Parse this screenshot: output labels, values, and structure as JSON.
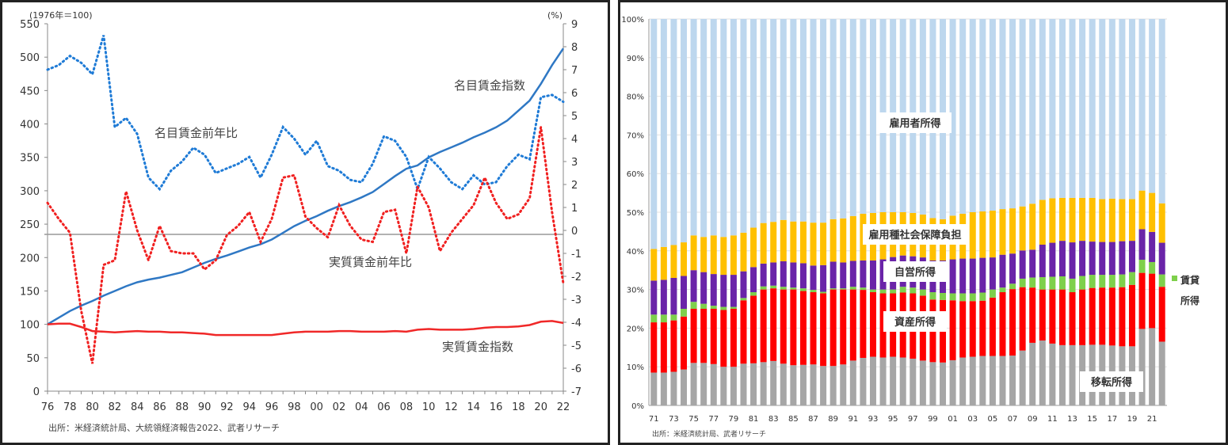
{
  "chart_data": [
    {
      "type": "line",
      "title": "",
      "left_unit_label": "(1976年＝100)",
      "right_unit_label": "(%)",
      "source": "出所：米経済統計局、大統領経済報告2022、武者リサーチ",
      "x": [
        1976,
        1977,
        1978,
        1979,
        1980,
        1981,
        1982,
        1983,
        1984,
        1985,
        1986,
        1987,
        1988,
        1989,
        1990,
        1991,
        1992,
        1993,
        1994,
        1995,
        1996,
        1997,
        1998,
        1999,
        2000,
        2001,
        2002,
        2003,
        2004,
        2005,
        2006,
        2007,
        2008,
        2009,
        2010,
        2011,
        2012,
        2013,
        2014,
        2015,
        2016,
        2017,
        2018,
        2019,
        2020,
        2021,
        2022
      ],
      "x_tick_labels": [
        "76",
        "78",
        "80",
        "82",
        "84",
        "86",
        "88",
        "90",
        "92",
        "94",
        "96",
        "98",
        "00",
        "02",
        "04",
        "06",
        "08",
        "10",
        "12",
        "14",
        "16",
        "18",
        "20",
        "22"
      ],
      "y_left_ticks": [
        "0",
        "50",
        "100",
        "150",
        "200",
        "250",
        "300",
        "350",
        "400",
        "450",
        "500",
        "550"
      ],
      "y_right_ticks": [
        "-7",
        "-6",
        "-5",
        "-4",
        "-3",
        "-2",
        "-1",
        "0",
        "1",
        "2",
        "3",
        "4",
        "5",
        "6",
        "7",
        "8",
        "9"
      ],
      "ylim_left": [
        0,
        550
      ],
      "ylim_right": [
        -7,
        9
      ],
      "series": [
        {
          "name": "名目賃金指数",
          "axis": "left",
          "style": "solid",
          "color": "#2f78c4",
          "values": [
            100,
            110,
            120,
            128,
            135,
            143,
            150,
            157,
            163,
            167,
            170,
            174,
            178,
            185,
            192,
            198,
            203,
            209,
            215,
            220,
            227,
            237,
            247,
            255,
            262,
            270,
            277,
            283,
            290,
            298,
            310,
            322,
            333,
            338,
            350,
            358,
            365,
            372,
            380,
            387,
            395,
            405,
            420,
            435,
            460,
            488,
            513
          ]
        },
        {
          "name": "名目賃金前年比",
          "axis": "right",
          "style": "dotted",
          "color": "#1f7bd6",
          "values": [
            7.0,
            7.2,
            7.6,
            7.3,
            6.8,
            8.5,
            4.5,
            4.9,
            4.2,
            2.3,
            1.8,
            2.6,
            3.0,
            3.6,
            3.3,
            2.5,
            2.7,
            2.9,
            3.2,
            2.3,
            3.3,
            4.5,
            4.0,
            3.3,
            3.9,
            2.8,
            2.6,
            2.2,
            2.1,
            2.9,
            4.1,
            3.9,
            3.2,
            1.8,
            3.2,
            2.7,
            2.1,
            1.8,
            2.4,
            2.0,
            2.1,
            2.8,
            3.3,
            3.1,
            5.8,
            5.9,
            5.6
          ]
        },
        {
          "name": "実質賃金前年比",
          "axis": "right",
          "style": "dotted",
          "color": "#f02020",
          "values": [
            1.2,
            0.5,
            -0.1,
            -3.5,
            -5.8,
            -1.5,
            -1.3,
            1.7,
            0.0,
            -1.3,
            0.2,
            -0.9,
            -1.0,
            -1.0,
            -1.7,
            -1.3,
            -0.2,
            0.2,
            0.8,
            -0.5,
            0.5,
            2.3,
            2.4,
            0.6,
            0.1,
            -0.3,
            1.1,
            0.2,
            -0.4,
            -0.5,
            0.8,
            0.9,
            -1.0,
            1.9,
            1.0,
            -0.9,
            -0.1,
            0.5,
            1.1,
            2.3,
            1.2,
            0.5,
            0.7,
            1.4,
            4.5,
            0.8,
            -2.3
          ]
        },
        {
          "name": "実質賃金指数",
          "axis": "left",
          "style": "solid",
          "color": "#f02828",
          "values": [
            100,
            101,
            101,
            96,
            90,
            89,
            88,
            89,
            90,
            89,
            89,
            88,
            88,
            87,
            86,
            84,
            84,
            84,
            84,
            84,
            84,
            86,
            88,
            89,
            89,
            89,
            90,
            90,
            89,
            89,
            89,
            90,
            89,
            92,
            93,
            92,
            92,
            92,
            93,
            95,
            96,
            96,
            97,
            99,
            104,
            105,
            102
          ]
        }
      ],
      "annotations": [
        "名目賃金指数",
        "名目賃金前年比",
        "実質賃金前年比",
        "実質賃金指数"
      ]
    },
    {
      "type": "bar",
      "stacked": true,
      "title": "",
      "source": "出所：米経済統計局、武者リサーチ",
      "categories": [
        "71",
        "72",
        "73",
        "74",
        "75",
        "76",
        "77",
        "78",
        "79",
        "80",
        "81",
        "82",
        "83",
        "84",
        "85",
        "86",
        "87",
        "88",
        "89",
        "90",
        "91",
        "92",
        "93",
        "94",
        "95",
        "96",
        "97",
        "98",
        "99",
        "00",
        "01",
        "02",
        "03",
        "04",
        "05",
        "06",
        "07",
        "08",
        "09",
        "10",
        "11",
        "12",
        "13",
        "14",
        "15",
        "16",
        "17",
        "18",
        "19",
        "20",
        "21",
        "22"
      ],
      "x_tick_labels": [
        "71",
        "73",
        "75",
        "77",
        "79",
        "81",
        "83",
        "85",
        "87",
        "89",
        "91",
        "93",
        "95",
        "97",
        "99",
        "01",
        "03",
        "05",
        "07",
        "09",
        "11",
        "13",
        "15",
        "17",
        "19",
        "21"
      ],
      "y_ticks": [
        "0%",
        "10%",
        "20%",
        "30%",
        "40%",
        "50%",
        "60%",
        "70%",
        "80%",
        "90%",
        "100%"
      ],
      "ylim": [
        0,
        100
      ],
      "series": [
        {
          "name": "移転所得",
          "color": "#a6a6a6",
          "values": [
            8.5,
            8.5,
            8.7,
            9.3,
            11,
            11,
            10.7,
            10,
            10,
            10.8,
            10.9,
            11.2,
            11.5,
            10.8,
            10.4,
            10.5,
            10.6,
            10.2,
            10.2,
            10.6,
            11.6,
            12.3,
            12.6,
            12.4,
            12.6,
            12.4,
            12.1,
            11.6,
            11.2,
            11.1,
            11.7,
            12.4,
            12.6,
            12.8,
            12.8,
            12.8,
            12.9,
            14.2,
            16.2,
            16.8,
            16,
            15.6,
            15.6,
            15.6,
            15.7,
            15.7,
            15.5,
            15.3,
            15.3,
            19.8,
            20,
            16.5
          ]
        },
        {
          "name": "資産所得",
          "color": "#ff0000",
          "values": [
            13,
            13,
            13.3,
            13.7,
            14,
            14,
            14.3,
            14.7,
            15,
            16.4,
            17.5,
            18.8,
            18.8,
            19.2,
            19.6,
            19.1,
            18.7,
            18.8,
            19.8,
            19.4,
            18.4,
            17.6,
            16.7,
            16.6,
            16.4,
            16.8,
            16.9,
            16.8,
            16.2,
            16.2,
            15.5,
            14.6,
            14.4,
            14.3,
            15.1,
            16.5,
            17.2,
            16.4,
            14.3,
            13.2,
            14,
            14.4,
            13.7,
            14.4,
            14.7,
            14.8,
            15,
            15.3,
            15.9,
            14.5,
            14.1,
            14.2
          ]
        },
        {
          "name": "賃貸所得",
          "color": "#7ed04b",
          "values": [
            2,
            2,
            1.5,
            2,
            1.8,
            1.3,
            0.8,
            0.8,
            0.5,
            0.6,
            0.9,
            0.8,
            0.7,
            0.7,
            0.5,
            0.7,
            0.6,
            0.4,
            0.3,
            0.3,
            0.7,
            0.6,
            0.7,
            1,
            1,
            1.5,
            1.5,
            1.6,
            1.9,
            1.8,
            1.8,
            2,
            2,
            2.1,
            2.1,
            1.2,
            1.4,
            2.2,
            2.6,
            3.2,
            3.3,
            3.4,
            3.5,
            3.5,
            3.4,
            3.3,
            3.3,
            3.3,
            3.3,
            3.4,
            3,
            3.2
          ]
        },
        {
          "name": "自営所得",
          "color": "#6a24a8",
          "values": [
            8.8,
            9,
            9.5,
            8.5,
            8.2,
            8.2,
            8.2,
            8.3,
            8.3,
            6.9,
            6.5,
            5.9,
            6,
            6.6,
            6.5,
            6.5,
            6.3,
            6.9,
            6.9,
            6.7,
            6.7,
            7,
            7.5,
            7.8,
            8.4,
            8.1,
            8.1,
            8.3,
            8.2,
            8.4,
            8.8,
            9,
            9,
            9,
            8.3,
            8.5,
            7.8,
            7.3,
            7.2,
            8.4,
            8.8,
            9.2,
            9.4,
            9.1,
            8.6,
            8.5,
            8.5,
            8.6,
            8.1,
            7.9,
            7.8,
            8.2
          ]
        },
        {
          "name": "雇用種社会保障負担",
          "color": "#ffc000",
          "values": [
            8.2,
            8.5,
            8.5,
            8.7,
            9,
            9.1,
            10,
            9.8,
            10.2,
            10,
            10.2,
            10.5,
            10.5,
            10.7,
            10.6,
            10.8,
            11.1,
            11,
            11,
            11.4,
            11.6,
            12.1,
            12.3,
            12.2,
            11.6,
            11.2,
            11.2,
            11.1,
            11,
            10.7,
            11.3,
            11.6,
            12,
            12,
            12.1,
            11.8,
            11.7,
            11.4,
            11.9,
            11.6,
            11.5,
            11.1,
            11.5,
            11.1,
            11.3,
            11.1,
            11.2,
            10.9,
            10.8,
            10,
            10.1,
            10.2
          ]
        },
        {
          "name": "雇用者所得",
          "color": "#bdd7ee",
          "values": [
            59.5,
            59,
            58.5,
            57.8,
            56,
            56.4,
            56,
            56.4,
            56,
            55.3,
            54,
            52.8,
            52.5,
            52,
            52.4,
            52.4,
            52.7,
            52.7,
            51.8,
            51.6,
            51,
            50.4,
            50.2,
            50,
            50,
            50,
            50.2,
            50.6,
            51.5,
            51.8,
            50.9,
            50.4,
            50,
            49.8,
            49.6,
            49.2,
            49,
            48.5,
            47.8,
            46.8,
            46.4,
            46.3,
            46.3,
            46.3,
            46.3,
            46.6,
            46.5,
            46.6,
            46.6,
            44.4,
            45,
            47.7
          ]
        }
      ],
      "legend": {
        "label_line1": "賃貸",
        "label_line2": "所得",
        "color": "#7ed04b"
      },
      "annotations": [
        "雇用者所得",
        "雇用種社会保障負担",
        "自営所得",
        "資産所得",
        "移転所得"
      ]
    }
  ]
}
